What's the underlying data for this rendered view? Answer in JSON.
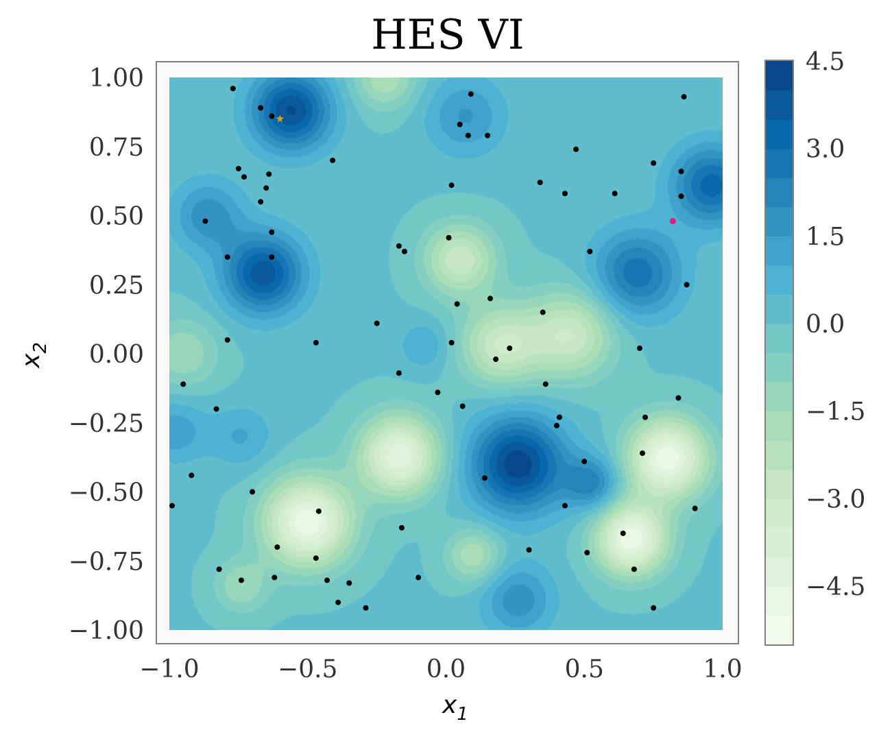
{
  "chart_data": {
    "type": "contour",
    "title": "HES VI",
    "xlabel": "x",
    "xlabel_sub": "1",
    "ylabel": "x",
    "ylabel_sub": "2",
    "xlim": [
      -1.0,
      1.0
    ],
    "ylim": [
      -1.0,
      1.0
    ],
    "x_ticks": [
      -1.0,
      -0.5,
      0.0,
      0.5,
      1.0
    ],
    "x_tick_labels": [
      "−1.0",
      "−0.5",
      "0.0",
      "0.5",
      "1.0"
    ],
    "y_ticks": [
      1.0,
      0.75,
      0.5,
      0.25,
      0.0,
      -0.25,
      -0.5,
      -0.75,
      -1.0
    ],
    "y_tick_labels": [
      "1.00",
      "0.75",
      "0.50",
      "0.25",
      "0.00",
      "−0.25",
      "−0.50",
      "−0.75",
      "−1.00"
    ],
    "colorbar": {
      "range": [
        -5.5,
        4.5
      ],
      "ticks": [
        4.5,
        3.0,
        1.5,
        0.0,
        -1.5,
        -3.0,
        -4.5
      ],
      "tick_labels": [
        "4.5",
        "3.0",
        "1.5",
        "0.0",
        "−1.5",
        "−3.0",
        "−4.5"
      ],
      "colormap": "GnBu"
    },
    "bumps": [
      {
        "x": -0.56,
        "y": 0.88,
        "a": 4.0,
        "s": 0.1
      },
      {
        "x": -0.66,
        "y": 0.29,
        "a": 3.8,
        "s": 0.1
      },
      {
        "x": 0.26,
        "y": -0.4,
        "a": 4.3,
        "s": 0.12
      },
      {
        "x": 0.53,
        "y": -0.47,
        "a": 2.2,
        "s": 0.07
      },
      {
        "x": 0.96,
        "y": 0.61,
        "a": 3.2,
        "s": 0.1
      },
      {
        "x": 0.69,
        "y": 0.29,
        "a": 2.8,
        "s": 0.11
      },
      {
        "x": -0.86,
        "y": 0.5,
        "a": 1.8,
        "s": 0.09
      },
      {
        "x": 0.07,
        "y": 0.86,
        "a": 1.5,
        "s": 0.1
      },
      {
        "x": -0.98,
        "y": -0.28,
        "a": 1.3,
        "s": 0.08
      },
      {
        "x": -0.74,
        "y": -0.3,
        "a": 1.0,
        "s": 0.08
      },
      {
        "x": 0.26,
        "y": -0.89,
        "a": 1.8,
        "s": 0.09
      },
      {
        "x": -0.08,
        "y": 0.03,
        "a": 1.0,
        "s": 0.06
      },
      {
        "x": -0.5,
        "y": -0.61,
        "a": -5.0,
        "s": 0.11
      },
      {
        "x": -0.17,
        "y": -0.37,
        "a": -4.5,
        "s": 0.1
      },
      {
        "x": 0.8,
        "y": -0.38,
        "a": -5.0,
        "s": 0.1
      },
      {
        "x": 0.67,
        "y": -0.67,
        "a": -5.0,
        "s": 0.09
      },
      {
        "x": 0.2,
        "y": 0.03,
        "a": -3.0,
        "s": 0.1
      },
      {
        "x": 0.45,
        "y": 0.07,
        "a": -3.0,
        "s": 0.11
      },
      {
        "x": 0.05,
        "y": 0.34,
        "a": -3.0,
        "s": 0.09
      },
      {
        "x": -0.22,
        "y": 1.0,
        "a": -2.0,
        "s": 0.08
      },
      {
        "x": 0.1,
        "y": -0.73,
        "a": -2.0,
        "s": 0.07
      },
      {
        "x": -0.95,
        "y": 0.0,
        "a": -1.5,
        "s": 0.09
      },
      {
        "x": -0.74,
        "y": -0.84,
        "a": -1.5,
        "s": 0.07
      }
    ],
    "points": [
      [
        -0.77,
        0.96
      ],
      [
        -0.67,
        0.89
      ],
      [
        -0.63,
        0.86
      ],
      [
        0.09,
        0.94
      ],
      [
        0.86,
        0.93
      ],
      [
        0.05,
        0.83
      ],
      [
        0.08,
        0.79
      ],
      [
        0.15,
        0.79
      ],
      [
        0.47,
        0.74
      ],
      [
        0.75,
        0.69
      ],
      [
        -0.41,
        0.7
      ],
      [
        -0.75,
        0.67
      ],
      [
        -0.64,
        0.65
      ],
      [
        -0.73,
        0.64
      ],
      [
        0.85,
        0.66
      ],
      [
        0.34,
        0.62
      ],
      [
        0.02,
        0.61
      ],
      [
        -0.65,
        0.6
      ],
      [
        0.43,
        0.58
      ],
      [
        0.61,
        0.58
      ],
      [
        0.85,
        0.57
      ],
      [
        -0.67,
        0.55
      ],
      [
        -0.87,
        0.48
      ],
      [
        -0.63,
        0.44
      ],
      [
        0.01,
        0.42
      ],
      [
        -0.17,
        0.39
      ],
      [
        -0.15,
        0.37
      ],
      [
        0.52,
        0.37
      ],
      [
        -0.79,
        0.35
      ],
      [
        -0.63,
        0.35
      ],
      [
        0.87,
        0.25
      ],
      [
        0.16,
        0.2
      ],
      [
        0.04,
        0.18
      ],
      [
        0.35,
        0.15
      ],
      [
        -0.25,
        0.11
      ],
      [
        -0.79,
        0.05
      ],
      [
        -0.47,
        0.04
      ],
      [
        0.02,
        0.04
      ],
      [
        0.23,
        0.02
      ],
      [
        0.7,
        0.02
      ],
      [
        0.18,
        -0.02
      ],
      [
        -0.17,
        -0.07
      ],
      [
        0.36,
        -0.11
      ],
      [
        -0.95,
        -0.11
      ],
      [
        -0.03,
        -0.14
      ],
      [
        0.84,
        -0.16
      ],
      [
        -0.83,
        -0.2
      ],
      [
        0.06,
        -0.19
      ],
      [
        0.41,
        -0.23
      ],
      [
        0.72,
        -0.23
      ],
      [
        0.4,
        -0.26
      ],
      [
        0.71,
        -0.36
      ],
      [
        0.5,
        -0.39
      ],
      [
        -0.92,
        -0.44
      ],
      [
        0.14,
        -0.45
      ],
      [
        -0.7,
        -0.5
      ],
      [
        -0.99,
        -0.55
      ],
      [
        0.43,
        -0.55
      ],
      [
        0.9,
        -0.56
      ],
      [
        -0.46,
        -0.57
      ],
      [
        -0.16,
        -0.63
      ],
      [
        0.64,
        -0.65
      ],
      [
        -0.61,
        -0.7
      ],
      [
        0.3,
        -0.71
      ],
      [
        0.51,
        -0.72
      ],
      [
        -0.47,
        -0.74
      ],
      [
        0.68,
        -0.78
      ],
      [
        -0.82,
        -0.78
      ],
      [
        -0.1,
        -0.81
      ],
      [
        -0.62,
        -0.81
      ],
      [
        -0.43,
        -0.82
      ],
      [
        -0.35,
        -0.83
      ],
      [
        -0.74,
        -0.82
      ],
      [
        -0.39,
        -0.9
      ],
      [
        -0.29,
        -0.92
      ],
      [
        0.75,
        -0.92
      ]
    ],
    "best_point": [
      -0.6,
      0.85
    ],
    "query_point": [
      0.82,
      0.48
    ],
    "colors": {
      "points": "#000000",
      "best_point": "#d4a017",
      "query_point": "#e6197d",
      "frame": "#808080",
      "plot_background": "#fafafa"
    }
  }
}
